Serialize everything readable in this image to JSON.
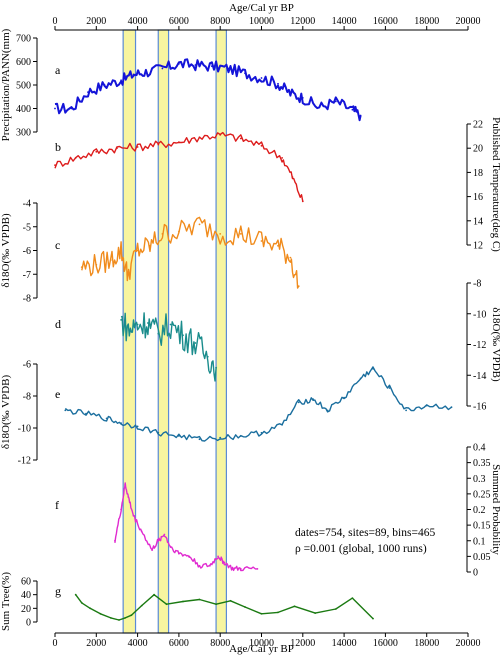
{
  "chart_data": {
    "type": "line",
    "x_axis": {
      "label": "Age/Cal yr BP",
      "range": [
        0,
        20000
      ],
      "ticks": [
        0,
        2000,
        4000,
        6000,
        8000,
        10000,
        12000,
        14000,
        16000,
        18000,
        20000
      ]
    },
    "highlight_bands": [
      {
        "from": 3300,
        "to": 3900
      },
      {
        "from": 5000,
        "to": 5500
      },
      {
        "from": 7800,
        "to": 8300
      }
    ],
    "band_color": "#f7f5a0",
    "band_edge_color": "#5b8bd6",
    "annotation_lines": [
      "dates=754, sites=89, bins=465",
      "ρ =0.001 (global, 1000 runs)"
    ],
    "panels": [
      {
        "id": "a",
        "label": "a",
        "ylabel": "Precipitation/PANN(mm)",
        "axis_side": "left",
        "ylim": [
          300,
          700
        ],
        "ticks": [
          300,
          400,
          500,
          600,
          700
        ],
        "color": "#1414d8",
        "x": [
          0,
          800,
          1600,
          2400,
          3200,
          3800,
          4400,
          5200,
          6000,
          6800,
          7600,
          8400,
          9200,
          10000,
          10800,
          11400,
          12000,
          12800,
          13600,
          14400,
          14800
        ],
        "y": [
          400,
          400,
          470,
          500,
          520,
          545,
          555,
          570,
          590,
          585,
          580,
          570,
          550,
          530,
          505,
          465,
          445,
          405,
          430,
          395,
          370
        ]
      },
      {
        "id": "b",
        "label": "b",
        "ylabel": "Published Temperature(deg C)",
        "axis_side": "right",
        "ylim": [
          12,
          22
        ],
        "ticks": [
          12,
          14,
          16,
          18,
          20,
          22
        ],
        "color": "#dd1c1c",
        "x": [
          0,
          1000,
          2000,
          3000,
          4000,
          5000,
          6000,
          7000,
          8000,
          9000,
          10000,
          11000,
          11500,
          12000
        ],
        "y": [
          18.6,
          19.2,
          19.7,
          20.0,
          20.1,
          20.3,
          20.5,
          20.9,
          21.1,
          20.8,
          20.2,
          19.2,
          17.6,
          15.6
        ]
      },
      {
        "id": "c",
        "label": "c",
        "ylabel": "δ18O(‰ VPDB)",
        "axis_side": "left",
        "ylim": [
          -8,
          -4
        ],
        "ticks": [
          -8,
          -7,
          -6,
          -5,
          -4
        ],
        "color": "#f08b1c",
        "x": [
          1300,
          2000,
          2700,
          3200,
          3500,
          4000,
          4600,
          5200,
          6000,
          7000,
          8000,
          9000,
          10000,
          10800,
          11400,
          11800
        ],
        "y": [
          -6.7,
          -6.6,
          -6.4,
          -6.0,
          -7.0,
          -6.0,
          -5.8,
          -5.3,
          -5.2,
          -4.9,
          -5.3,
          -5.3,
          -5.6,
          -5.8,
          -6.3,
          -7.5
        ]
      },
      {
        "id": "d",
        "label": "d",
        "ylabel": "δ18O(‰ VPDB)",
        "axis_side": "right",
        "ylim": [
          -16,
          -8
        ],
        "ticks": [
          -16,
          -14,
          -12,
          -10,
          -8
        ],
        "color": "#1a8c8c",
        "x": [
          3200,
          3600,
          4000,
          4500,
          5000,
          5600,
          6200,
          6800,
          7400,
          7800
        ],
        "y": [
          -10.4,
          -11.1,
          -10.7,
          -10.6,
          -11.3,
          -10.7,
          -11.4,
          -11.9,
          -12.8,
          -13.5
        ]
      },
      {
        "id": "e",
        "label": "e",
        "ylabel": "δ18O(‰ VPDB)",
        "axis_side": "left",
        "ylim": [
          -12,
          -6
        ],
        "ticks": [
          -12,
          -10,
          -8,
          -6
        ],
        "color": "#1a6e9e",
        "x": [
          500,
          1500,
          2500,
          3200,
          4000,
          5000,
          6000,
          7000,
          8000,
          9000,
          10000,
          11000,
          11800,
          12500,
          13200,
          14000,
          14800,
          15400,
          16200,
          17000,
          18000,
          19200
        ],
        "y": [
          -8.9,
          -9.1,
          -9.4,
          -9.7,
          -9.9,
          -10.3,
          -10.5,
          -10.7,
          -10.6,
          -10.5,
          -10.3,
          -9.8,
          -8.4,
          -8.2,
          -8.9,
          -8.1,
          -6.9,
          -6.3,
          -7.5,
          -8.9,
          -8.6,
          -8.7
        ]
      },
      {
        "id": "f",
        "label": "f",
        "ylabel": "Summed Probability",
        "axis_side": "right",
        "ylim": [
          0,
          0.4
        ],
        "ticks": [
          0,
          0.05,
          0.1,
          0.15,
          0.2,
          0.25,
          0.3,
          0.35,
          0.4
        ],
        "color": "#e02ad0",
        "x": [
          2900,
          3200,
          3400,
          3550,
          3800,
          4200,
          4700,
          5000,
          5300,
          5600,
          6000,
          6500,
          7000,
          7500,
          7900,
          8200,
          8600,
          9000,
          9800
        ],
        "y": [
          0.1,
          0.2,
          0.28,
          0.24,
          0.18,
          0.13,
          0.07,
          0.1,
          0.12,
          0.08,
          0.06,
          0.05,
          0.02,
          0.02,
          0.05,
          0.03,
          0.01,
          0.01,
          0.01
        ]
      },
      {
        "id": "g",
        "label": "g",
        "ylabel": "Sum Tree(%)",
        "axis_side": "left",
        "ylim": [
          0,
          60
        ],
        "ticks": [
          0,
          20,
          40,
          60
        ],
        "color": "#1b7a12",
        "x": [
          1000,
          1300,
          1700,
          2200,
          2700,
          3100,
          3400,
          3700,
          4200,
          4800,
          5400,
          6200,
          7000,
          7800,
          8500,
          9200,
          10000,
          10800,
          11600,
          12600,
          13600,
          14400,
          15400
        ],
        "y": [
          40,
          28,
          20,
          12,
          6,
          3,
          6,
          10,
          24,
          40,
          26,
          30,
          33,
          26,
          31,
          22,
          12,
          14,
          23,
          13,
          19,
          35,
          5
        ]
      }
    ]
  }
}
